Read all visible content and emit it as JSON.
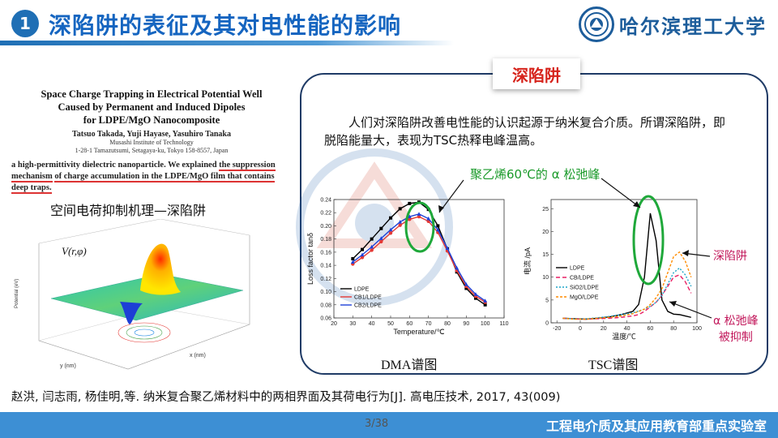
{
  "header": {
    "number": "1",
    "title": "深陷阱的表征及其对电性能的影响",
    "logo_text": "哈尔滨理工大学"
  },
  "paper": {
    "title_l1": "Space Charge Trapping in Electrical Potential Well",
    "title_l2": "Caused by Permanent and Induced Dipoles",
    "title_l3": "for LDPE/MgO Nanocomposite",
    "authors": "Tatsuo Takada, Yuji Hayase, Yasuhiro Tanaka",
    "inst_l1": "Musashi Institute of Technology",
    "inst_l2": "1-28-1 Tamazutsumi, Setagaya-ku, Tokyo 158-8557, Japan",
    "abs_1": "a high-permittivity dielectric nanoparticle. We explained ",
    "abs_2": "the suppression mechanism",
    "abs_3": "of charge accumulation in the LDPE/MgO film that contains ",
    "abs_4": "deep traps."
  },
  "section_label": "空间电荷抑制机理—深陷阱",
  "plot3d": {
    "zlabel": "Potential (eV)",
    "xlabel": "x (nm)",
    "ylabel": "y (nm)",
    "formula": "V(r,φ)"
  },
  "panel": {
    "badge": "深陷阱",
    "text": "人们对深陷阱改善电性能的认识起源于纳米复合介质。所谓深陷阱，即脱陷能量大，表现为TSC热释电峰温高。",
    "annot_green": "聚乙烯60℃的 α 松弛峰",
    "annot_red1": "深陷阱",
    "annot_red2_l1": "α 松弛峰",
    "annot_red2_l2": "被抑制",
    "dma_caption": "DMA谱图",
    "tsc_caption": "TSC谱图"
  },
  "reference": "赵洪, 闫志雨, 杨佳明,等. 纳米复合聚乙烯材料中的两相界面及其荷电行为[J]. 高电压技术, 2017, 43(009)",
  "footer": {
    "page": "3/38",
    "lab": "工程电介质及其应用教育部重点实验室"
  },
  "chart_data": [
    {
      "type": "line",
      "title": "",
      "xlabel": "Temperature/℃",
      "ylabel": "Loss factor tanδ",
      "xlim": [
        20,
        110
      ],
      "ylim": [
        0.06,
        0.24
      ],
      "xticks": [
        20,
        30,
        40,
        50,
        60,
        70,
        80,
        90,
        100,
        110
      ],
      "yticks": [
        0.06,
        0.08,
        0.1,
        0.12,
        0.14,
        0.16,
        0.18,
        0.2,
        0.22,
        0.24
      ],
      "legend": "bottom-left",
      "x": [
        30,
        35,
        40,
        45,
        50,
        55,
        60,
        65,
        70,
        75,
        80,
        85,
        90,
        95,
        100
      ],
      "series": [
        {
          "name": "LDPE",
          "color": "#000000",
          "values": [
            0.15,
            0.164,
            0.18,
            0.196,
            0.212,
            0.226,
            0.234,
            0.236,
            0.225,
            0.2,
            0.165,
            0.13,
            0.105,
            0.09,
            0.08
          ]
        },
        {
          "name": "CB1/LDPE",
          "color": "#e53935",
          "values": [
            0.142,
            0.152,
            0.163,
            0.176,
            0.189,
            0.201,
            0.21,
            0.214,
            0.207,
            0.19,
            0.162,
            0.132,
            0.108,
            0.093,
            0.084
          ]
        },
        {
          "name": "CB2/LDPE",
          "color": "#1e40d8",
          "values": [
            0.145,
            0.156,
            0.168,
            0.181,
            0.194,
            0.206,
            0.214,
            0.218,
            0.211,
            0.194,
            0.166,
            0.136,
            0.111,
            0.096,
            0.086
          ]
        }
      ]
    },
    {
      "type": "line",
      "title": "",
      "xlabel": "温度/℃",
      "ylabel": "电流 /pA",
      "xlim": [
        -25,
        100
      ],
      "ylim": [
        0,
        27
      ],
      "xticks": [
        -20,
        0,
        20,
        40,
        60,
        80,
        100
      ],
      "yticks": [
        0,
        5,
        10,
        15,
        20,
        25
      ],
      "legend": "left",
      "x": [
        -15,
        -5,
        5,
        15,
        25,
        35,
        45,
        50,
        55,
        60,
        65,
        70,
        75,
        80,
        85,
        90,
        95
      ],
      "series": [
        {
          "name": "LDPE",
          "color": "#000000",
          "values": [
            1.0,
            0.9,
            0.8,
            1.0,
            1.3,
            1.8,
            2.5,
            4.0,
            10.0,
            24.0,
            18.0,
            5.0,
            2.5,
            1.9,
            1.8,
            1.5,
            1.2
          ]
        },
        {
          "name": "CB/LDPE",
          "color": "#e91e63",
          "values": [
            1.0,
            0.9,
            0.8,
            0.9,
            1.0,
            1.2,
            1.5,
            1.8,
            2.5,
            3.5,
            4.5,
            6.0,
            8.0,
            10.0,
            10.5,
            9.0,
            6.5
          ]
        },
        {
          "name": "SiO2/LDPE",
          "color": "#1ea5c8",
          "values": [
            1.0,
            0.9,
            0.9,
            1.1,
            1.4,
            1.8,
            2.2,
            2.6,
            3.0,
            3.6,
            4.5,
            6.0,
            8.5,
            11.0,
            12.0,
            10.5,
            8.0
          ]
        },
        {
          "name": "MgO/LDPE",
          "color": "#ff8c00",
          "values": [
            1.0,
            0.8,
            0.8,
            1.0,
            1.2,
            1.5,
            2.0,
            2.5,
            3.0,
            4.0,
            5.5,
            7.5,
            11.0,
            14.5,
            15.5,
            13.5,
            10.0
          ]
        }
      ]
    }
  ]
}
